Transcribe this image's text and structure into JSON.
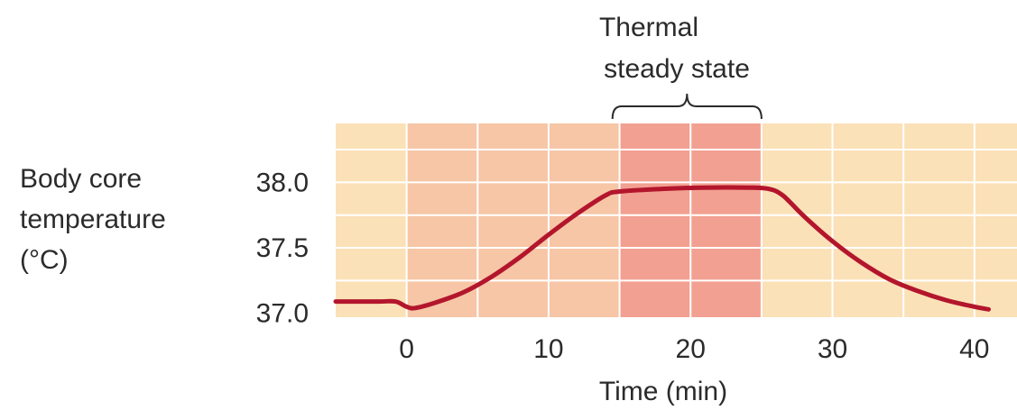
{
  "chart_data": {
    "type": "line",
    "title": "",
    "xlabel": "Time (min)",
    "ylabel_lines": [
      "Body core",
      "temperature",
      "(°C)"
    ],
    "xlim": [
      -5,
      43
    ],
    "ylim": [
      36.97,
      38.45
    ],
    "x_ticks": [
      0,
      10,
      20,
      30,
      40
    ],
    "y_ticks": [
      37.0,
      37.5,
      38.0
    ],
    "y_tick_labels": [
      "37.0",
      "37.5",
      "38.0"
    ],
    "grid": true,
    "regions": [
      {
        "from": -5,
        "to": 0,
        "color": "#fbe1b7"
      },
      {
        "from": 0,
        "to": 15,
        "color": "#f6c6a6"
      },
      {
        "from": 15,
        "to": 25,
        "color": "#f2a091"
      },
      {
        "from": 25,
        "to": 43,
        "color": "#fbe1b7"
      }
    ],
    "annotation": {
      "lines": [
        "Thermal",
        "steady state"
      ],
      "from": 14.5,
      "to": 25
    },
    "series": [
      {
        "color": "#b3162c",
        "points": [
          [
            -5,
            37.09
          ],
          [
            -2,
            37.09
          ],
          [
            -0.8,
            37.09
          ],
          [
            0,
            37.05
          ],
          [
            0.6,
            37.04
          ],
          [
            2,
            37.08
          ],
          [
            4,
            37.16
          ],
          [
            6,
            37.28
          ],
          [
            8,
            37.43
          ],
          [
            10,
            37.6
          ],
          [
            12,
            37.76
          ],
          [
            14,
            37.9
          ],
          [
            15,
            37.93
          ],
          [
            18,
            37.95
          ],
          [
            21,
            37.96
          ],
          [
            24,
            37.96
          ],
          [
            25.5,
            37.95
          ],
          [
            26.5,
            37.9
          ],
          [
            28,
            37.74
          ],
          [
            30,
            37.55
          ],
          [
            32,
            37.39
          ],
          [
            34,
            37.26
          ],
          [
            36,
            37.17
          ],
          [
            38,
            37.1
          ],
          [
            40,
            37.05
          ],
          [
            41,
            37.03
          ]
        ]
      }
    ]
  }
}
